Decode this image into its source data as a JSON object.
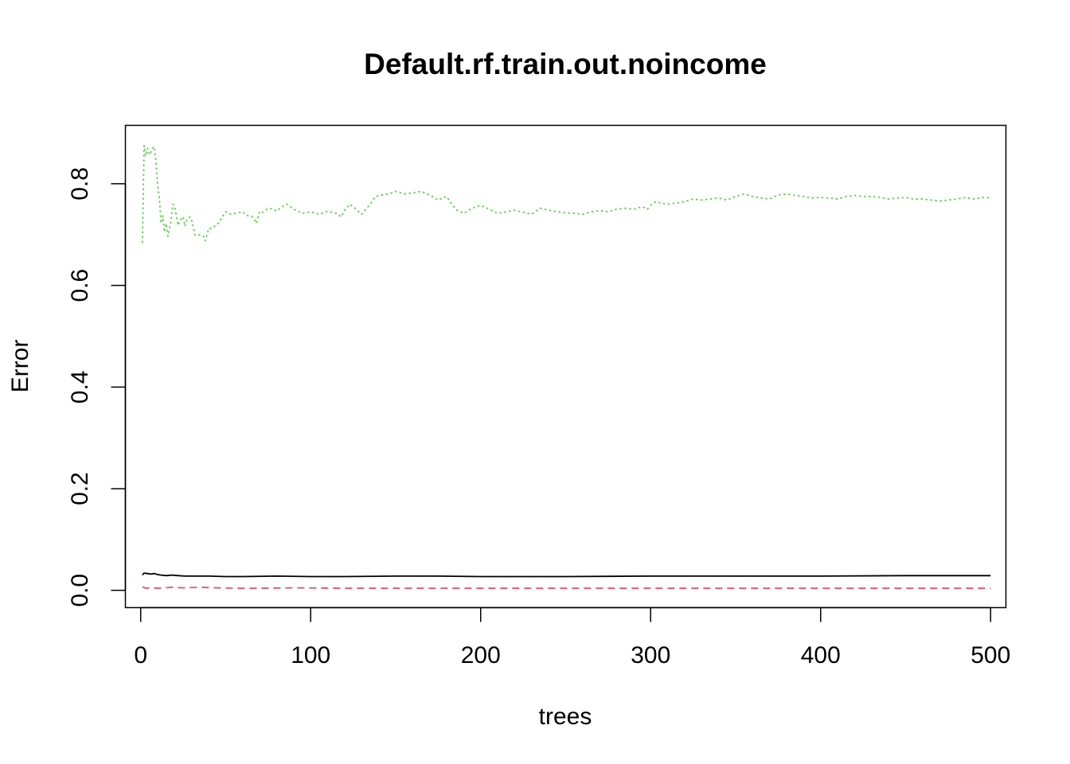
{
  "chart_data": {
    "type": "line",
    "title": "Default.rf.train.out.noincome",
    "xlabel": "trees",
    "ylabel": "Error",
    "xlim": [
      -9,
      509
    ],
    "ylim": [
      -0.034,
      0.915
    ],
    "x_ticks": [
      "0",
      "100",
      "200",
      "300",
      "400",
      "500"
    ],
    "x_tick_values": [
      0,
      100,
      200,
      300,
      400,
      500
    ],
    "y_ticks": [
      "0.0",
      "0.2",
      "0.4",
      "0.6",
      "0.8"
    ],
    "y_tick_values": [
      0,
      0.2,
      0.4,
      0.6,
      0.8
    ],
    "grid": false,
    "legend": "none",
    "series": [
      {
        "color": "#000000",
        "dash": "solid",
        "points": [
          [
            1,
            0.03
          ],
          [
            2,
            0.034
          ],
          [
            4,
            0.033
          ],
          [
            6,
            0.032
          ],
          [
            8,
            0.033
          ],
          [
            10,
            0.031
          ],
          [
            12,
            0.03
          ],
          [
            15,
            0.029
          ],
          [
            18,
            0.03
          ],
          [
            22,
            0.029
          ],
          [
            26,
            0.028
          ],
          [
            30,
            0.028
          ],
          [
            40,
            0.028
          ],
          [
            50,
            0.027
          ],
          [
            60,
            0.027
          ],
          [
            80,
            0.028
          ],
          [
            100,
            0.027
          ],
          [
            120,
            0.027
          ],
          [
            150,
            0.028
          ],
          [
            175,
            0.028
          ],
          [
            200,
            0.027
          ],
          [
            250,
            0.027
          ],
          [
            300,
            0.028
          ],
          [
            350,
            0.028
          ],
          [
            400,
            0.028
          ],
          [
            450,
            0.029
          ],
          [
            500,
            0.029
          ]
        ]
      },
      {
        "color": "#DF536B",
        "dash": "dashed",
        "points": [
          [
            1,
            0.007
          ],
          [
            3,
            0.004
          ],
          [
            6,
            0.005
          ],
          [
            10,
            0.004
          ],
          [
            14,
            0.005
          ],
          [
            18,
            0.006
          ],
          [
            25,
            0.005
          ],
          [
            35,
            0.006
          ],
          [
            45,
            0.005
          ],
          [
            55,
            0.004
          ],
          [
            70,
            0.004
          ],
          [
            90,
            0.005
          ],
          [
            120,
            0.004
          ],
          [
            150,
            0.004
          ],
          [
            200,
            0.004
          ],
          [
            250,
            0.004
          ],
          [
            300,
            0.004
          ],
          [
            350,
            0.004
          ],
          [
            400,
            0.004
          ],
          [
            450,
            0.004
          ],
          [
            500,
            0.004
          ]
        ]
      },
      {
        "color": "#61D04F",
        "dash": "dotted",
        "points": [
          [
            1,
            0.684
          ],
          [
            2,
            0.875
          ],
          [
            3,
            0.855
          ],
          [
            4,
            0.87
          ],
          [
            5,
            0.857
          ],
          [
            6,
            0.862
          ],
          [
            7,
            0.87
          ],
          [
            8,
            0.873
          ],
          [
            9,
            0.845
          ],
          [
            10,
            0.796
          ],
          [
            11,
            0.77
          ],
          [
            12,
            0.722
          ],
          [
            13,
            0.737
          ],
          [
            14,
            0.705
          ],
          [
            15,
            0.722
          ],
          [
            16,
            0.697
          ],
          [
            17,
            0.712
          ],
          [
            18,
            0.732
          ],
          [
            19,
            0.76
          ],
          [
            20,
            0.755
          ],
          [
            21,
            0.736
          ],
          [
            22,
            0.718
          ],
          [
            23,
            0.727
          ],
          [
            24,
            0.731
          ],
          [
            25,
            0.735
          ],
          [
            26,
            0.716
          ],
          [
            27,
            0.728
          ],
          [
            28,
            0.731
          ],
          [
            29,
            0.735
          ],
          [
            30,
            0.728
          ],
          [
            31,
            0.713
          ],
          [
            32,
            0.699
          ],
          [
            33,
            0.7
          ],
          [
            35,
            0.699
          ],
          [
            37,
            0.697
          ],
          [
            38,
            0.688
          ],
          [
            40,
            0.712
          ],
          [
            42,
            0.712
          ],
          [
            44,
            0.718
          ],
          [
            46,
            0.723
          ],
          [
            48,
            0.735
          ],
          [
            50,
            0.745
          ],
          [
            53,
            0.74
          ],
          [
            56,
            0.742
          ],
          [
            60,
            0.745
          ],
          [
            62,
            0.738
          ],
          [
            65,
            0.737
          ],
          [
            67,
            0.729
          ],
          [
            68,
            0.722
          ],
          [
            70,
            0.746
          ],
          [
            72,
            0.744
          ],
          [
            75,
            0.752
          ],
          [
            78,
            0.75
          ],
          [
            80,
            0.746
          ],
          [
            83,
            0.755
          ],
          [
            86,
            0.76
          ],
          [
            90,
            0.75
          ],
          [
            95,
            0.742
          ],
          [
            100,
            0.745
          ],
          [
            105,
            0.74
          ],
          [
            110,
            0.746
          ],
          [
            115,
            0.742
          ],
          [
            118,
            0.735
          ],
          [
            120,
            0.748
          ],
          [
            123,
            0.76
          ],
          [
            126,
            0.752
          ],
          [
            128,
            0.746
          ],
          [
            130,
            0.74
          ],
          [
            132,
            0.748
          ],
          [
            135,
            0.76
          ],
          [
            138,
            0.775
          ],
          [
            142,
            0.778
          ],
          [
            146,
            0.78
          ],
          [
            150,
            0.785
          ],
          [
            155,
            0.78
          ],
          [
            160,
            0.782
          ],
          [
            165,
            0.785
          ],
          [
            170,
            0.778
          ],
          [
            175,
            0.768
          ],
          [
            180,
            0.775
          ],
          [
            183,
            0.76
          ],
          [
            186,
            0.748
          ],
          [
            190,
            0.742
          ],
          [
            195,
            0.752
          ],
          [
            200,
            0.758
          ],
          [
            205,
            0.75
          ],
          [
            210,
            0.742
          ],
          [
            215,
            0.745
          ],
          [
            220,
            0.748
          ],
          [
            225,
            0.744
          ],
          [
            230,
            0.74
          ],
          [
            235,
            0.752
          ],
          [
            240,
            0.748
          ],
          [
            245,
            0.745
          ],
          [
            250,
            0.743
          ],
          [
            255,
            0.742
          ],
          [
            260,
            0.74
          ],
          [
            265,
            0.745
          ],
          [
            270,
            0.747
          ],
          [
            275,
            0.745
          ],
          [
            280,
            0.75
          ],
          [
            285,
            0.752
          ],
          [
            290,
            0.75
          ],
          [
            295,
            0.755
          ],
          [
            298,
            0.75
          ],
          [
            300,
            0.758
          ],
          [
            303,
            0.765
          ],
          [
            306,
            0.762
          ],
          [
            310,
            0.76
          ],
          [
            315,
            0.762
          ],
          [
            320,
            0.765
          ],
          [
            325,
            0.77
          ],
          [
            330,
            0.768
          ],
          [
            335,
            0.77
          ],
          [
            340,
            0.772
          ],
          [
            345,
            0.768
          ],
          [
            350,
            0.775
          ],
          [
            355,
            0.78
          ],
          [
            360,
            0.775
          ],
          [
            365,
            0.772
          ],
          [
            370,
            0.77
          ],
          [
            375,
            0.778
          ],
          [
            380,
            0.78
          ],
          [
            385,
            0.777
          ],
          [
            390,
            0.775
          ],
          [
            395,
            0.772
          ],
          [
            400,
            0.773
          ],
          [
            405,
            0.772
          ],
          [
            410,
            0.77
          ],
          [
            415,
            0.775
          ],
          [
            420,
            0.777
          ],
          [
            425,
            0.775
          ],
          [
            430,
            0.775
          ],
          [
            435,
            0.773
          ],
          [
            440,
            0.77
          ],
          [
            445,
            0.772
          ],
          [
            450,
            0.773
          ],
          [
            455,
            0.77
          ],
          [
            460,
            0.77
          ],
          [
            465,
            0.768
          ],
          [
            470,
            0.766
          ],
          [
            475,
            0.768
          ],
          [
            480,
            0.77
          ],
          [
            485,
            0.773
          ],
          [
            490,
            0.77
          ],
          [
            495,
            0.773
          ],
          [
            500,
            0.773
          ]
        ]
      }
    ]
  }
}
